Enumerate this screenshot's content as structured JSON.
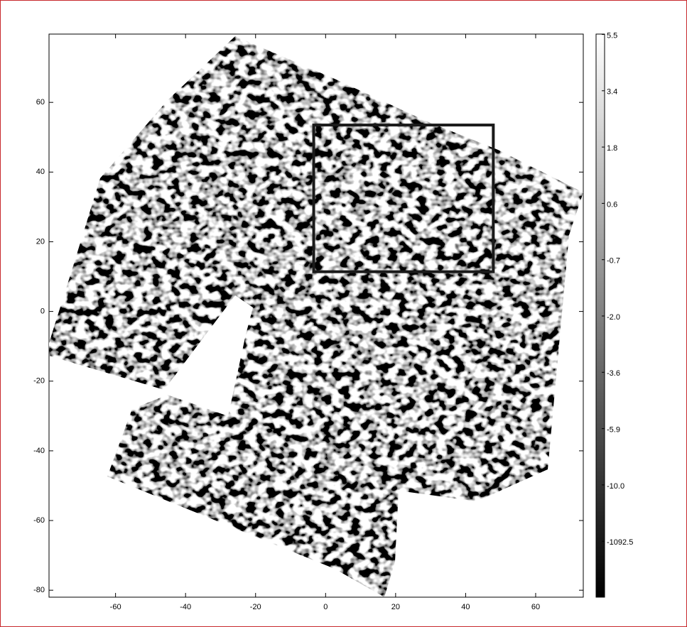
{
  "chart_data": {
    "type": "image",
    "xlim": [
      -79,
      73.6
    ],
    "ylim": [
      -82,
      79.6
    ],
    "xticks": [
      -60,
      -40,
      -20,
      0,
      20,
      40,
      60
    ],
    "yticks": [
      -80,
      -60,
      -40,
      -20,
      0,
      20,
      40,
      60
    ],
    "colorbar": {
      "ticks": [
        5.5,
        3.4,
        1.8,
        0.6,
        -0.7,
        {
          "value": -2,
          "label": "-2.0"
        },
        -3.6,
        -5.9,
        {
          "value": -10,
          "label": "-10.0"
        },
        -1092.5
      ]
    },
    "annotation_box": {
      "x": [
        -3.4,
        47.9
      ],
      "y": [
        11.4,
        53.5
      ]
    }
  }
}
